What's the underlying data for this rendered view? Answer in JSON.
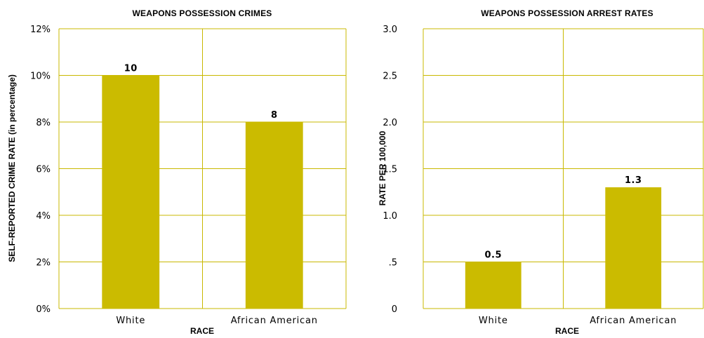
{
  "chart_data": [
    {
      "type": "bar",
      "title": "WEAPONS POSSESSION CRIMES",
      "xlabel": "RACE",
      "ylabel": "SELF-REPORTED CRIME RATE (in percentage)",
      "categories": [
        "White",
        "African American"
      ],
      "values": [
        10,
        8
      ],
      "value_labels": [
        "10",
        "8"
      ],
      "ylim": [
        0,
        12
      ],
      "ytick_values": [
        0,
        2,
        4,
        6,
        8,
        10,
        12
      ],
      "ytick_labels": [
        "0%",
        "2%",
        "4%",
        "6%",
        "8%",
        "10%",
        "12%"
      ],
      "grid": true,
      "bar_color": "#cbbb00",
      "grid_color": "#c9b800"
    },
    {
      "type": "bar",
      "title": "WEAPONS POSSESSION ARREST RATES",
      "xlabel": "RACE",
      "ylabel": "RATE PER 100,000",
      "categories": [
        "White",
        "African American"
      ],
      "values": [
        0.5,
        1.3
      ],
      "value_labels": [
        "0.5",
        "1.3"
      ],
      "ylim": [
        0,
        3
      ],
      "ytick_values": [
        0,
        0.5,
        1,
        1.5,
        2,
        2.5,
        3
      ],
      "ytick_labels": [
        "0",
        ".5",
        "1.0",
        "1.5",
        "2.0",
        "2.5",
        "3.0"
      ],
      "grid": true,
      "bar_color": "#cbbb00",
      "grid_color": "#c9b800"
    }
  ]
}
